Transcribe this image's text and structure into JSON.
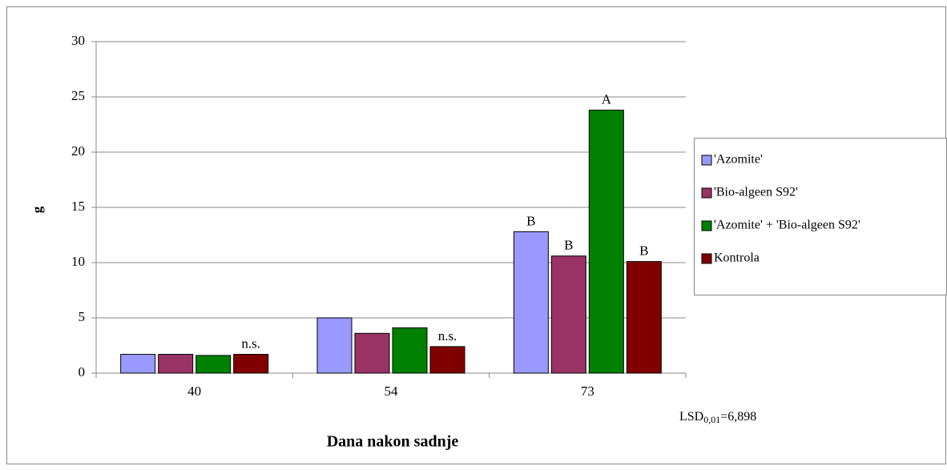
{
  "chart_data": {
    "type": "bar",
    "x_label": "Dana nakon sadnje",
    "y_label": "g",
    "categories": [
      "40",
      "54",
      "73"
    ],
    "series": [
      {
        "name": "'Azomite'",
        "color": "#9999ff",
        "values": [
          1.7,
          5.0,
          12.8
        ],
        "annotations": [
          null,
          null,
          "B"
        ]
      },
      {
        "name": "'Bio-algeen S92'",
        "color": "#993366",
        "values": [
          1.7,
          3.6,
          10.6
        ],
        "annotations": [
          null,
          null,
          "B"
        ]
      },
      {
        "name": "'Azomite' + 'Bio-algeen S92'",
        "color": "#008000",
        "values": [
          1.6,
          4.1,
          23.8
        ],
        "annotations": [
          null,
          null,
          "A"
        ]
      },
      {
        "name": "Kontrola",
        "color": "#800000",
        "values": [
          1.7,
          2.4,
          10.1
        ],
        "annotations": [
          "n.s.",
          "n.s.",
          "B"
        ]
      }
    ],
    "ylim": [
      0,
      30
    ],
    "yticks": [
      0,
      5,
      10,
      15,
      20,
      25,
      30
    ],
    "grid": true,
    "legend": "right",
    "note": {
      "text": "LSD",
      "sub": "0,01",
      "rest": "=6,898"
    }
  }
}
